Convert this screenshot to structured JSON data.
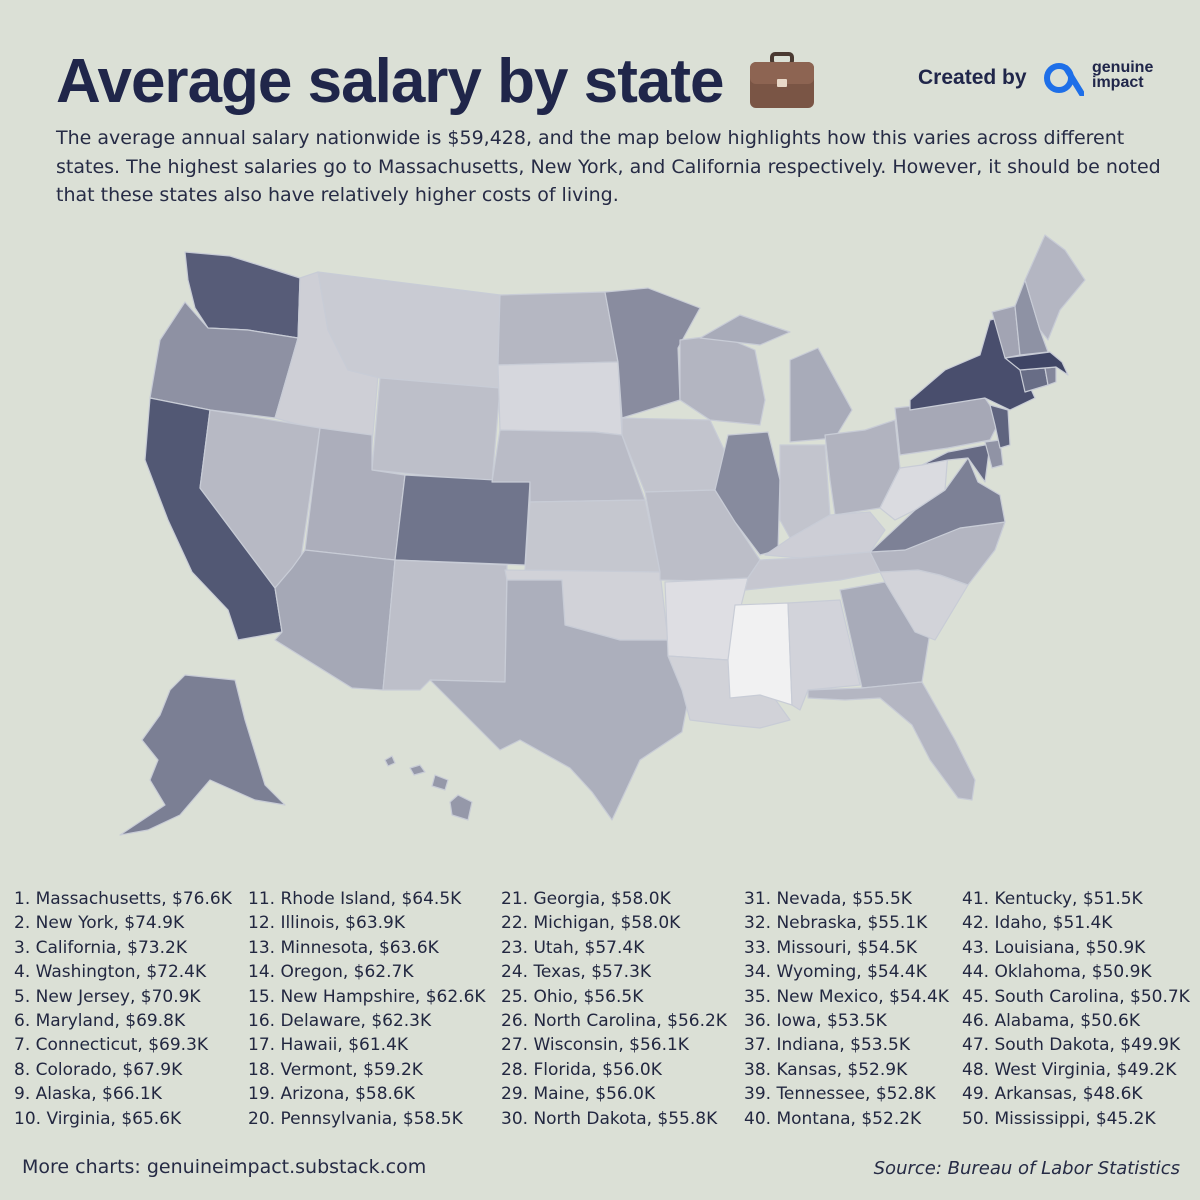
{
  "header": {
    "title": "Average salary by state",
    "created_by": "Created by",
    "brand_line1": "genuine",
    "brand_line2": "impact",
    "icon": "briefcase-icon",
    "accent_color": "#1e6fe8"
  },
  "description": "The average annual salary nationwide is $59,428, and the map below highlights how this varies across different states. The highest salaries go to Massachusetts, New York, and California respectively. However, it should be noted that these states also have relatively higher costs of living.",
  "rankings": [
    [
      "1. Massachusetts, $76.6K",
      "2. New York, $74.9K",
      "3. California, $73.2K",
      "4. Washington, $72.4K",
      "5. New Jersey, $70.9K",
      "6. Maryland, $69.8K",
      "7. Connecticut, $69.3K",
      "8. Colorado, $67.9K",
      "9. Alaska, $66.1K",
      "10. Virginia, $65.6K"
    ],
    [
      "11. Rhode Island, $64.5K",
      "12. Illinois, $63.9K",
      "13. Minnesota, $63.6K",
      "14. Oregon, $62.7K",
      "15. New Hampshire, $62.6K",
      "16. Delaware, $62.3K",
      "17. Hawaii, $61.4K",
      "18. Vermont, $59.2K",
      "19. Arizona, $58.6K",
      "20. Pennsylvania, $58.5K"
    ],
    [
      "21. Georgia, $58.0K",
      "22. Michigan, $58.0K",
      "23. Utah, $57.4K",
      "24. Texas, $57.3K",
      "25. Ohio, $56.5K",
      "26. North Carolina, $56.2K",
      "27. Wisconsin, $56.1K",
      "28. Florida, $56.0K",
      "29. Maine, $56.0K",
      "30. North Dakota, $55.8K"
    ],
    [
      "31. Nevada, $55.5K",
      "32. Nebraska, $55.1K",
      "33. Missouri, $54.5K",
      "34. Wyoming, $54.4K",
      "35. New Mexico, $54.4K",
      "36. Iowa, $53.5K",
      "37. Indiana, $53.5K",
      "38. Kansas, $52.9K",
      "39. Tennessee, $52.8K",
      "40. Montana, $52.2K"
    ],
    [
      "41. Kentucky, $51.5K",
      "42. Idaho, $51.4K",
      "43. Louisiana, $50.9K",
      "44. Oklahoma, $50.9K",
      "45. South Carolina, $50.7K",
      "46. Alabama, $50.6K",
      "47. South Dakota, $49.9K",
      "48. West Virginia, $49.2K",
      "49. Arkansas, $48.6K",
      "50. Mississippi, $45.2K"
    ]
  ],
  "map": {
    "color_low": "#f1f1f2",
    "color_high": "#3f4565",
    "min_salary_k": 45.2,
    "max_salary_k": 76.6,
    "states": {
      "MA": 76.6,
      "NY": 74.9,
      "CA": 73.2,
      "WA": 72.4,
      "NJ": 70.9,
      "MD": 69.8,
      "CT": 69.3,
      "CO": 67.9,
      "AK": 66.1,
      "VA": 65.6,
      "RI": 64.5,
      "IL": 63.9,
      "MN": 63.6,
      "OR": 62.7,
      "NH": 62.6,
      "DE": 62.3,
      "HI": 61.4,
      "VT": 59.2,
      "AZ": 58.6,
      "PA": 58.5,
      "GA": 58.0,
      "MI": 58.0,
      "UT": 57.4,
      "TX": 57.3,
      "OH": 56.5,
      "NC": 56.2,
      "WI": 56.1,
      "FL": 56.0,
      "ME": 56.0,
      "ND": 55.8,
      "NV": 55.5,
      "NE": 55.1,
      "MO": 54.5,
      "WY": 54.4,
      "NM": 54.4,
      "IA": 53.5,
      "IN": 53.5,
      "KS": 52.9,
      "TN": 52.8,
      "MT": 52.2,
      "KY": 51.5,
      "ID": 51.4,
      "LA": 50.9,
      "OK": 50.9,
      "SC": 50.7,
      "AL": 50.6,
      "SD": 49.9,
      "WV": 49.2,
      "AR": 48.6,
      "MS": 45.2
    }
  },
  "footer": {
    "more_charts": "More charts: genuineimpact.substack.com",
    "source": "Source: Bureau of Labor Statistics"
  }
}
